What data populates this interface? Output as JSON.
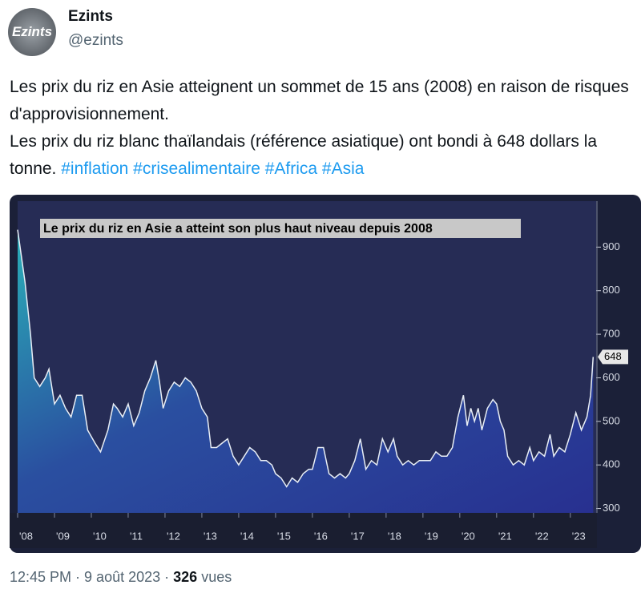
{
  "header": {
    "avatar_label": "Ezints",
    "name": "Ezints",
    "handle": "@ezints"
  },
  "tweet": {
    "text": [
      "Les prix du riz en Asie atteignent un sommet de 15 ans (2008) en raison de risques d'approvisionnement.",
      "Les prix du riz blanc thaïlandais (référence asiatique) ont bondi à 648 dollars la tonne."
    ],
    "hashtags": [
      "#inflation",
      "#crisealimentaire",
      "#Africa",
      "#Asia"
    ]
  },
  "chart_data": {
    "type": "area",
    "title": "Le prix du riz en Asie a atteint son plus haut niveau depuis 2008",
    "color": "#e8eef5",
    "x": [
      2008.0,
      2008.2,
      2008.35,
      2008.45,
      2008.6,
      2008.75,
      2008.85,
      2009.0,
      2009.15,
      2009.3,
      2009.45,
      2009.6,
      2009.75,
      2009.9,
      2010.1,
      2010.25,
      2010.45,
      2010.6,
      2010.7,
      2010.85,
      2011.0,
      2011.15,
      2011.3,
      2011.45,
      2011.6,
      2011.75,
      2011.85,
      2011.95,
      2012.1,
      2012.25,
      2012.4,
      2012.55,
      2012.7,
      2012.85,
      2013.0,
      2013.15,
      2013.25,
      2013.4,
      2013.55,
      2013.7,
      2013.85,
      2014.0,
      2014.15,
      2014.3,
      2014.45,
      2014.6,
      2014.75,
      2014.9,
      2015.0,
      2015.15,
      2015.3,
      2015.45,
      2015.6,
      2015.75,
      2015.9,
      2016.0,
      2016.15,
      2016.3,
      2016.45,
      2016.6,
      2016.75,
      2016.9,
      2017.0,
      2017.15,
      2017.3,
      2017.45,
      2017.6,
      2017.75,
      2017.9,
      2018.05,
      2018.2,
      2018.3,
      2018.45,
      2018.6,
      2018.75,
      2018.9,
      2019.05,
      2019.2,
      2019.35,
      2019.5,
      2019.65,
      2019.8,
      2019.95,
      2020.1,
      2020.2,
      2020.3,
      2020.4,
      2020.5,
      2020.6,
      2020.75,
      2020.9,
      2021.0,
      2021.1,
      2021.2,
      2021.3,
      2021.45,
      2021.6,
      2021.75,
      2021.9,
      2022.0,
      2022.15,
      2022.3,
      2022.45,
      2022.55,
      2022.7,
      2022.85,
      2023.0,
      2023.15,
      2023.3,
      2023.45,
      2023.55,
      2023.62
    ],
    "values": [
      940,
      820,
      700,
      600,
      580,
      600,
      620,
      540,
      560,
      530,
      510,
      560,
      560,
      480,
      450,
      430,
      480,
      540,
      530,
      510,
      540,
      490,
      520,
      570,
      600,
      640,
      590,
      530,
      570,
      590,
      580,
      600,
      590,
      570,
      530,
      510,
      440,
      440,
      450,
      460,
      420,
      400,
      420,
      440,
      430,
      410,
      410,
      400,
      380,
      370,
      350,
      370,
      360,
      380,
      390,
      390,
      440,
      440,
      380,
      370,
      380,
      370,
      380,
      410,
      460,
      390,
      410,
      400,
      460,
      430,
      460,
      420,
      400,
      410,
      400,
      410,
      410,
      410,
      430,
      420,
      420,
      440,
      510,
      560,
      490,
      530,
      500,
      530,
      480,
      530,
      550,
      540,
      500,
      480,
      420,
      400,
      410,
      400,
      440,
      410,
      430,
      420,
      470,
      420,
      440,
      430,
      470,
      520,
      480,
      510,
      560,
      648
    ],
    "xlim": [
      2008,
      2023.7
    ],
    "ylim": [
      290,
      1000
    ],
    "xticks": [
      {
        "value": 2008,
        "label": "'08"
      },
      {
        "value": 2009,
        "label": "'09"
      },
      {
        "value": 2010,
        "label": "'10"
      },
      {
        "value": 2011,
        "label": "'11"
      },
      {
        "value": 2012,
        "label": "'12"
      },
      {
        "value": 2013,
        "label": "'13"
      },
      {
        "value": 2014,
        "label": "'14"
      },
      {
        "value": 2015,
        "label": "'15"
      },
      {
        "value": 2016,
        "label": "'16"
      },
      {
        "value": 2017,
        "label": "'17"
      },
      {
        "value": 2018,
        "label": "'18"
      },
      {
        "value": 2019,
        "label": "'19"
      },
      {
        "value": 2020,
        "label": "'20"
      },
      {
        "value": 2021,
        "label": "'21"
      },
      {
        "value": 2022,
        "label": "'22"
      },
      {
        "value": 2023,
        "label": "'23"
      }
    ],
    "yticks": [
      300,
      400,
      500,
      600,
      700,
      800,
      900
    ]
  },
  "footer": {
    "timestamp": "12:45 PM · 9 août 2023 ·",
    "views": "326",
    "views_label": "vues"
  }
}
